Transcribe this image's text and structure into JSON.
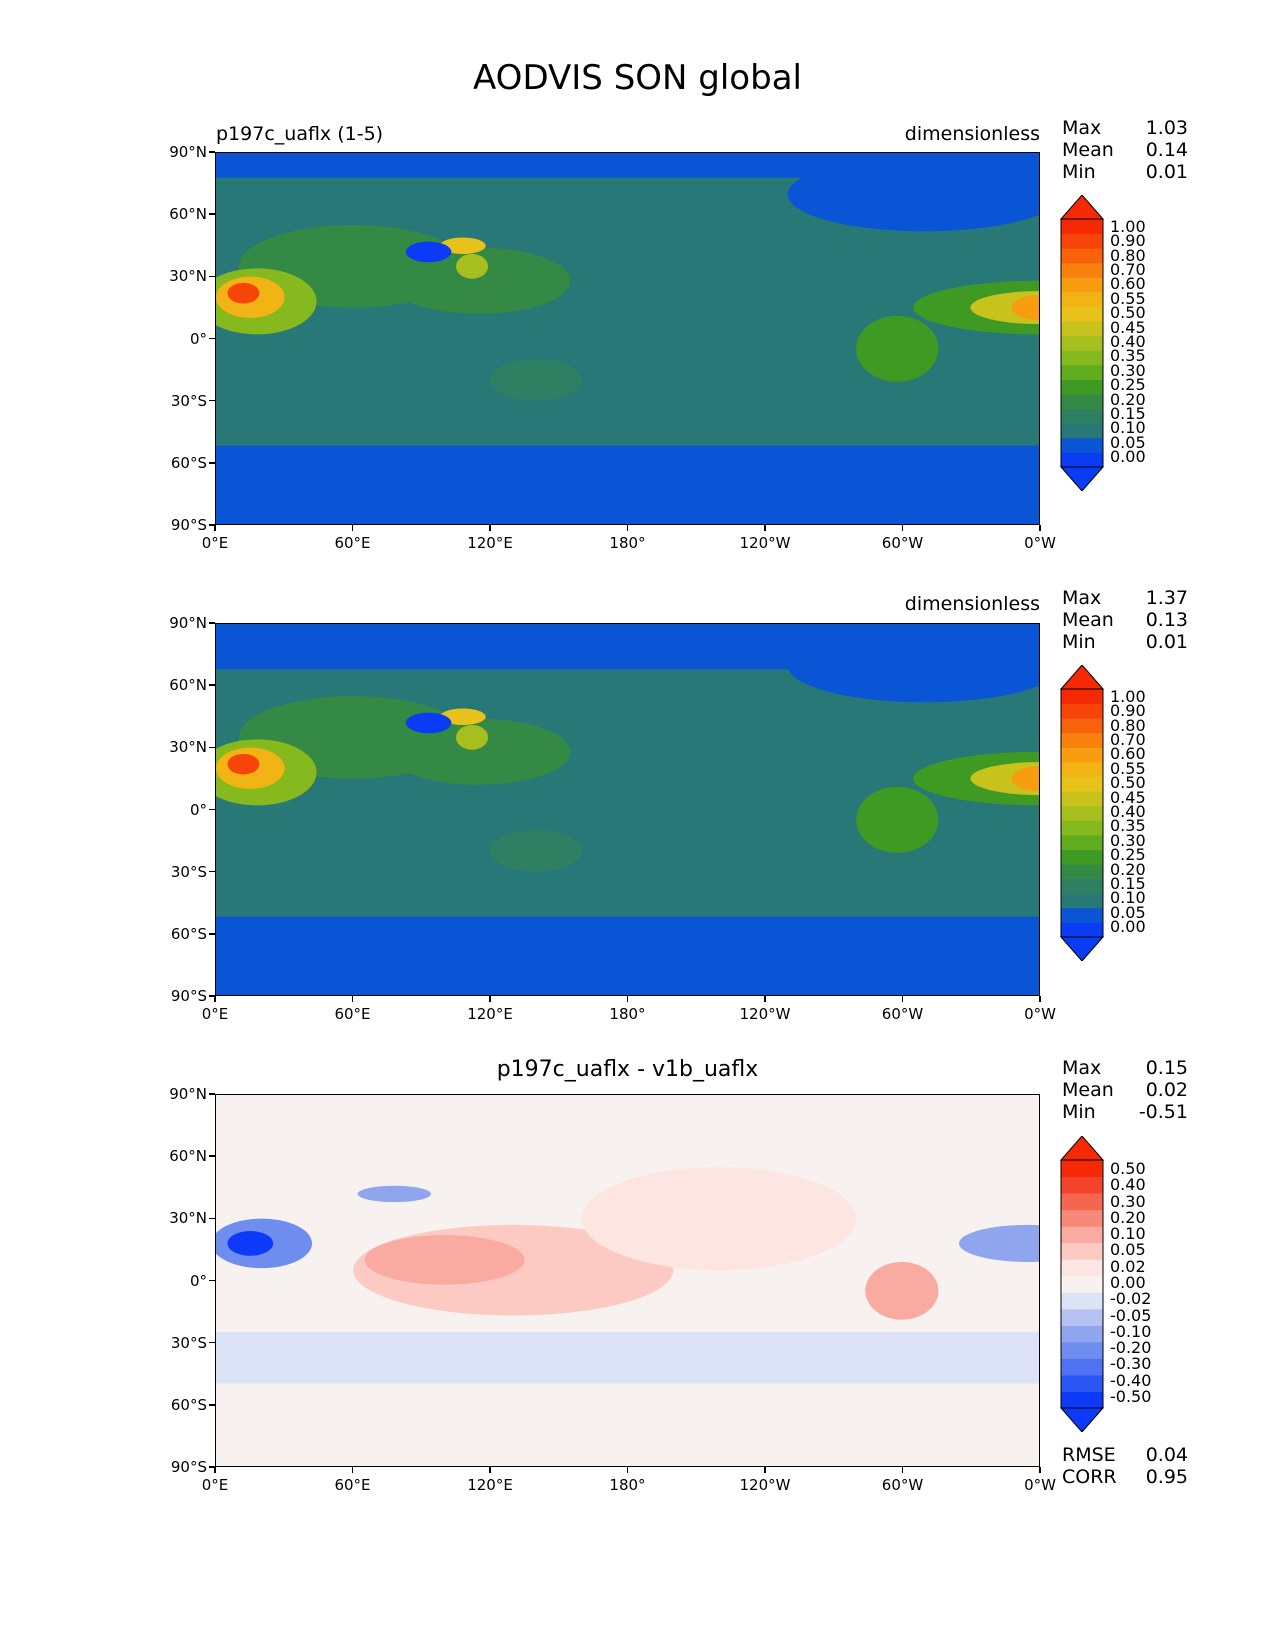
{
  "title": "AODVIS SON global",
  "panels": [
    {
      "left_title": "p197c_uaflx (1-5)",
      "center_title": "",
      "right_title": "dimensionless",
      "stats": {
        "max_label": "Max",
        "max": "1.03",
        "mean_label": "Mean",
        "mean": "0.14",
        "min_label": "Min",
        "min": "0.01"
      },
      "colorbar_labels": [
        "1.00",
        "0.90",
        "0.80",
        "0.70",
        "0.60",
        "0.55",
        "0.50",
        "0.45",
        "0.40",
        "0.35",
        "0.30",
        "0.25",
        "0.20",
        "0.15",
        "0.10",
        "0.05",
        "0.00"
      ]
    },
    {
      "left_title": "",
      "center_title": "",
      "right_title": "dimensionless",
      "stats": {
        "max_label": "Max",
        "max": "1.37",
        "mean_label": "Mean",
        "mean": "0.13",
        "min_label": "Min",
        "min": "0.01"
      },
      "colorbar_labels": [
        "1.00",
        "0.90",
        "0.80",
        "0.70",
        "0.60",
        "0.55",
        "0.50",
        "0.45",
        "0.40",
        "0.35",
        "0.30",
        "0.25",
        "0.20",
        "0.15",
        "0.10",
        "0.05",
        "0.00"
      ]
    },
    {
      "left_title": "",
      "center_title": "p197c_uaflx - v1b_uaflx",
      "right_title": "",
      "stats": {
        "max_label": "Max",
        "max": "0.15",
        "mean_label": "Mean",
        "mean": "0.02",
        "min_label": "Min",
        "min": "-0.51"
      },
      "extra_stats": {
        "rmse_label": "RMSE",
        "rmse": "0.04",
        "corr_label": "CORR",
        "corr": "0.95"
      },
      "colorbar_labels": [
        "0.50",
        "0.40",
        "0.30",
        "0.20",
        "0.10",
        "0.05",
        "0.02",
        "0.00",
        "-0.02",
        "-0.05",
        "-0.10",
        "-0.20",
        "-0.30",
        "-0.40",
        "-0.50"
      ]
    }
  ],
  "lat_ticks": [
    "90°N",
    "60°N",
    "30°N",
    "0°",
    "30°S",
    "60°S",
    "90°S"
  ],
  "lon_ticks": [
    "0°E",
    "60°E",
    "120°E",
    "180°",
    "120°W",
    "60°W",
    "0°W"
  ],
  "chart_data": [
    {
      "type": "heatmap",
      "title": "p197c_uaflx (1-5)",
      "units": "dimensionless",
      "max": 1.03,
      "mean": 0.14,
      "min": 0.01,
      "x_ticks": [
        "0°E",
        "60°E",
        "120°E",
        "180°",
        "120°W",
        "60°W",
        "0°W"
      ],
      "y_ticks": [
        "90°N",
        "60°N",
        "30°N",
        "0°",
        "30°S",
        "60°S",
        "90°S"
      ],
      "levels": [
        0,
        0.05,
        0.1,
        0.15,
        0.2,
        0.25,
        0.3,
        0.35,
        0.4,
        0.45,
        0.5,
        0.55,
        0.6,
        0.7,
        0.8,
        0.9,
        1.0
      ],
      "colors": [
        "#0a3cf5",
        "#0a55d6",
        "#287878",
        "#2f7f62",
        "#348a45",
        "#3f9a24",
        "#5fad1e",
        "#86b91e",
        "#a7bf1e",
        "#c8c21c",
        "#e6c21a",
        "#f2b414",
        "#f79d0f",
        "#f8800c",
        "#f8620a",
        "#f74408",
        "#f52a05"
      ]
    },
    {
      "type": "heatmap",
      "units": "dimensionless",
      "max": 1.37,
      "mean": 0.13,
      "min": 0.01,
      "x_ticks": [
        "0°E",
        "60°E",
        "120°E",
        "180°",
        "120°W",
        "60°W",
        "0°W"
      ],
      "y_ticks": [
        "90°N",
        "60°N",
        "30°N",
        "0°",
        "30°S",
        "60°S",
        "90°S"
      ],
      "levels": [
        0,
        0.05,
        0.1,
        0.15,
        0.2,
        0.25,
        0.3,
        0.35,
        0.4,
        0.45,
        0.5,
        0.55,
        0.6,
        0.7,
        0.8,
        0.9,
        1.0
      ],
      "colors": [
        "#0a3cf5",
        "#0a55d6",
        "#287878",
        "#2f7f62",
        "#348a45",
        "#3f9a24",
        "#5fad1e",
        "#86b91e",
        "#a7bf1e",
        "#c8c21c",
        "#e6c21a",
        "#f2b414",
        "#f79d0f",
        "#f8800c",
        "#f8620a",
        "#f74408",
        "#f52a05"
      ]
    },
    {
      "type": "heatmap",
      "title": "p197c_uaflx - v1b_uaflx",
      "max": 0.15,
      "mean": 0.02,
      "min": -0.51,
      "rmse": 0.04,
      "corr": 0.95,
      "x_ticks": [
        "0°E",
        "60°E",
        "120°E",
        "180°",
        "120°W",
        "60°W",
        "0°W"
      ],
      "y_ticks": [
        "90°N",
        "60°N",
        "30°N",
        "0°",
        "30°S",
        "60°S",
        "90°S"
      ],
      "levels": [
        -0.5,
        -0.4,
        -0.3,
        -0.2,
        -0.1,
        -0.05,
        -0.02,
        0,
        0.02,
        0.05,
        0.1,
        0.2,
        0.3,
        0.4,
        0.5
      ],
      "colors": [
        "#0d3af8",
        "#2c55f5",
        "#4f72f2",
        "#6f8cef",
        "#8fa6ee",
        "#b6c3f2",
        "#dde3f7",
        "#f7f1f0",
        "#fde5e2",
        "#fccac3",
        "#f9aba1",
        "#f78978",
        "#f56650",
        "#f4432a",
        "#f52a05"
      ]
    }
  ]
}
